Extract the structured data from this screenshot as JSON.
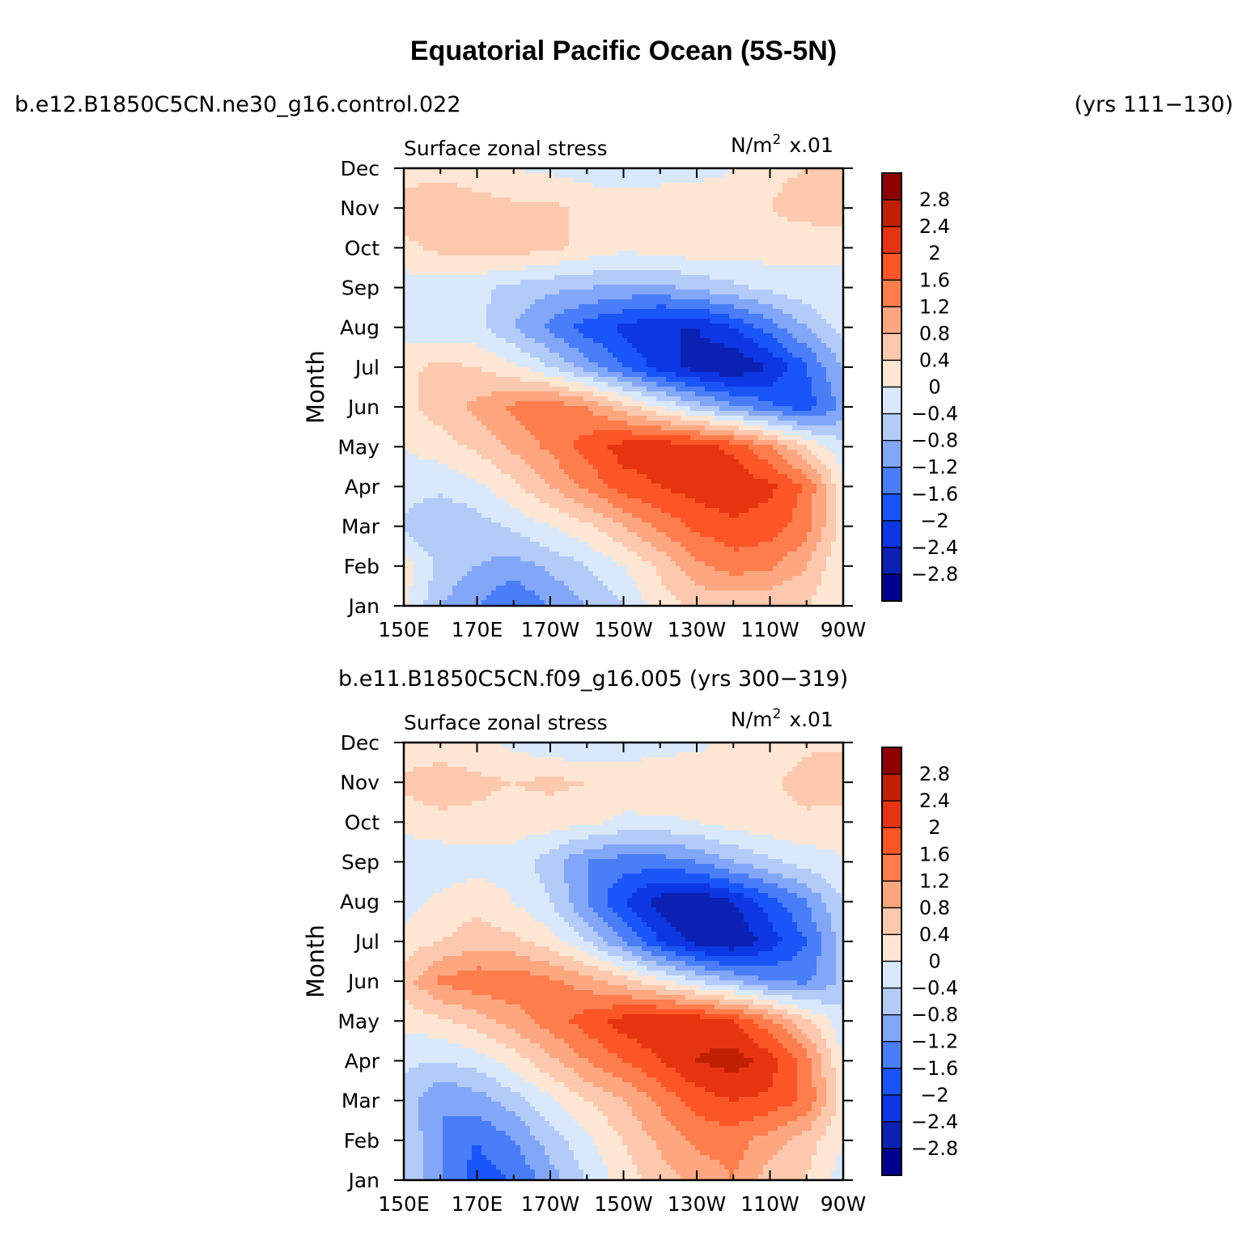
{
  "title": "Equatorial Pacific Ocean (5S-5N)",
  "colors": {
    "levels": [
      -2.8,
      -2.4,
      -2,
      -1.6,
      -1.2,
      -0.8,
      -0.4,
      0,
      0.4,
      0.8,
      1.2,
      1.6,
      2,
      2.4,
      2.8
    ],
    "fills": [
      "#00008c",
      "#0a21b4",
      "#0d37e3",
      "#1a55f7",
      "#4a7ef8",
      "#82a6f8",
      "#b3cbf9",
      "#d9e9fb",
      "#fde6d3",
      "#fdc9ae",
      "#fda781",
      "#fd7d4d",
      "#fc5526",
      "#e73410",
      "#bf2000",
      "#8c0000"
    ]
  },
  "chart_data": [
    {
      "type": "heatmap",
      "run_label": "b.e12.B1850C5CN.ne30_g16.control.022",
      "years_label": "(yrs 111−130)",
      "left_label": "Surface zonal stress",
      "units": "N/m",
      "units_sup": "2",
      "units_scale": "x.01",
      "ylabel": "Month",
      "xlim": [
        150,
        270
      ],
      "x_ticks": [
        "150E",
        "170E",
        "170W",
        "150W",
        "130W",
        "110W",
        "90W"
      ],
      "y_ticks": [
        "Jan",
        "Feb",
        "Mar",
        "Apr",
        "May",
        "Jun",
        "Jul",
        "Aug",
        "Sep",
        "Oct",
        "Nov",
        "Dec"
      ],
      "colorbar_labels": [
        "2.8",
        "2.4",
        "2",
        "1.6",
        "1.2",
        "0.8",
        "0.4",
        "0",
        "−0.4",
        "−0.8",
        "−1.2",
        "−1.6",
        "−2",
        "−2.4",
        "−2.8"
      ],
      "x": [
        150,
        160,
        170,
        180,
        190,
        200,
        210,
        220,
        230,
        240,
        250,
        260,
        270
      ],
      "y": [
        "Jan",
        "Feb",
        "Mar",
        "Apr",
        "May",
        "Jun",
        "Jul",
        "Aug",
        "Sep",
        "Oct",
        "Nov",
        "Dec"
      ],
      "z": [
        [
          0.1,
          -0.8,
          -1.2,
          -1.6,
          -1.2,
          -0.8,
          -0.4,
          0.2,
          0.5,
          0.5,
          0.4,
          0.4,
          0.0
        ],
        [
          0.2,
          -0.5,
          -0.8,
          -1.0,
          -0.7,
          -0.4,
          0.0,
          0.5,
          1.1,
          1.4,
          1.3,
          0.8,
          0.0
        ],
        [
          -0.5,
          -0.8,
          -0.6,
          -0.3,
          0.0,
          0.3,
          0.8,
          1.3,
          1.7,
          1.9,
          1.8,
          1.4,
          0.2
        ],
        [
          -0.2,
          -0.3,
          -0.1,
          0.3,
          0.8,
          1.3,
          1.8,
          2.0,
          2.2,
          2.3,
          2.1,
          1.5,
          0.1
        ],
        [
          0.0,
          0.2,
          0.5,
          0.9,
          1.3,
          1.8,
          2.2,
          2.3,
          2.2,
          1.9,
          1.2,
          0.4,
          -0.3
        ],
        [
          0.3,
          0.6,
          0.9,
          1.3,
          1.5,
          1.2,
          0.6,
          0.0,
          -0.6,
          -1.1,
          -1.5,
          -1.8,
          -1.1
        ],
        [
          0.3,
          0.5,
          0.4,
          0.1,
          -0.4,
          -1.0,
          -1.6,
          -2.2,
          -2.6,
          -2.8,
          -2.4,
          -1.6,
          -0.8
        ],
        [
          -0.2,
          -0.3,
          -0.3,
          -0.8,
          -1.3,
          -1.8,
          -2.1,
          -2.4,
          -2.4,
          -2.0,
          -1.4,
          -0.8,
          -0.2
        ],
        [
          -0.2,
          -0.2,
          -0.3,
          -0.5,
          -0.7,
          -0.8,
          -0.9,
          -0.9,
          -0.7,
          -0.5,
          -0.3,
          -0.1,
          0.0
        ],
        [
          0.3,
          0.5,
          0.6,
          0.6,
          0.5,
          0.3,
          0.1,
          0.2,
          0.3,
          0.2,
          0.2,
          0.1,
          0.0
        ],
        [
          0.6,
          0.8,
          0.6,
          0.5,
          0.5,
          0.3,
          0.3,
          0.4,
          0.2,
          0.1,
          0.4,
          0.6,
          0.7
        ],
        [
          0.2,
          0.2,
          0.1,
          0.0,
          -0.1,
          -0.2,
          -0.3,
          -0.3,
          -0.1,
          0.0,
          0.3,
          0.4,
          0.4
        ]
      ]
    },
    {
      "type": "heatmap",
      "run_label": "b.e11.B1850C5CN.f09_g16.005 (yrs 300−319)",
      "left_label": "Surface zonal stress",
      "units": "N/m",
      "units_sup": "2",
      "units_scale": "x.01",
      "ylabel": "Month",
      "xlim": [
        150,
        270
      ],
      "x_ticks": [
        "150E",
        "170E",
        "170W",
        "150W",
        "130W",
        "110W",
        "90W"
      ],
      "y_ticks": [
        "Jan",
        "Feb",
        "Mar",
        "Apr",
        "May",
        "Jun",
        "Jul",
        "Aug",
        "Sep",
        "Oct",
        "Nov",
        "Dec"
      ],
      "colorbar_labels": [
        "2.8",
        "2.4",
        "2",
        "1.6",
        "1.2",
        "0.8",
        "0.4",
        "0",
        "−0.4",
        "−0.8",
        "−1.2",
        "−1.6",
        "−2",
        "−2.4",
        "−2.8"
      ],
      "x": [
        150,
        160,
        170,
        180,
        190,
        200,
        210,
        220,
        230,
        240,
        250,
        260,
        270
      ],
      "y": [
        "Jan",
        "Feb",
        "Mar",
        "Apr",
        "May",
        "Jun",
        "Jul",
        "Aug",
        "Sep",
        "Oct",
        "Nov",
        "Dec"
      ],
      "z": [
        [
          -0.4,
          -1.2,
          -1.8,
          -1.6,
          -1.0,
          -0.4,
          0.2,
          0.6,
          0.9,
          1.2,
          0.6,
          0.4,
          -0.2
        ],
        [
          -0.4,
          -1.2,
          -1.6,
          -1.2,
          -0.6,
          -0.1,
          0.4,
          0.9,
          1.3,
          1.4,
          1.0,
          0.6,
          0.0
        ],
        [
          -0.6,
          -1.2,
          -1.0,
          -0.6,
          -0.1,
          0.4,
          0.8,
          1.3,
          1.8,
          2.0,
          1.9,
          1.5,
          0.2
        ],
        [
          -0.3,
          -0.4,
          -0.2,
          0.2,
          0.7,
          1.2,
          1.6,
          2.0,
          2.4,
          2.6,
          2.2,
          1.4,
          0.0
        ],
        [
          0.1,
          0.3,
          0.6,
          1.0,
          1.4,
          1.8,
          2.2,
          2.4,
          2.3,
          2.0,
          1.3,
          0.5,
          -0.3
        ],
        [
          0.6,
          1.3,
          1.5,
          1.5,
          1.3,
          1.0,
          0.6,
          0.1,
          -0.4,
          -0.8,
          -1.2,
          -1.3,
          -0.7
        ],
        [
          0.2,
          0.4,
          0.6,
          0.5,
          0.2,
          -0.4,
          -1.2,
          -2.0,
          -2.6,
          -2.8,
          -2.2,
          -1.6,
          -0.6
        ],
        [
          -0.2,
          0.1,
          0.3,
          0.0,
          -0.4,
          -1.2,
          -2.0,
          -2.6,
          -2.8,
          -2.4,
          -1.8,
          -1.2,
          -0.4
        ],
        [
          -0.4,
          -0.3,
          -0.2,
          -0.2,
          -0.6,
          -1.2,
          -1.4,
          -1.4,
          -1.2,
          -0.8,
          -0.5,
          -0.2,
          0.0
        ],
        [
          0.2,
          0.3,
          0.3,
          0.2,
          0.2,
          0.1,
          -0.1,
          -0.1,
          0.0,
          0.2,
          0.3,
          0.3,
          0.1
        ],
        [
          0.5,
          0.6,
          0.5,
          0.4,
          0.5,
          0.4,
          0.3,
          0.4,
          0.3,
          0.2,
          0.3,
          0.6,
          0.8
        ],
        [
          0.1,
          0.2,
          0.1,
          -0.1,
          -0.3,
          -0.4,
          -0.3,
          -0.2,
          -0.1,
          0.1,
          0.2,
          0.3,
          0.3
        ]
      ]
    }
  ]
}
